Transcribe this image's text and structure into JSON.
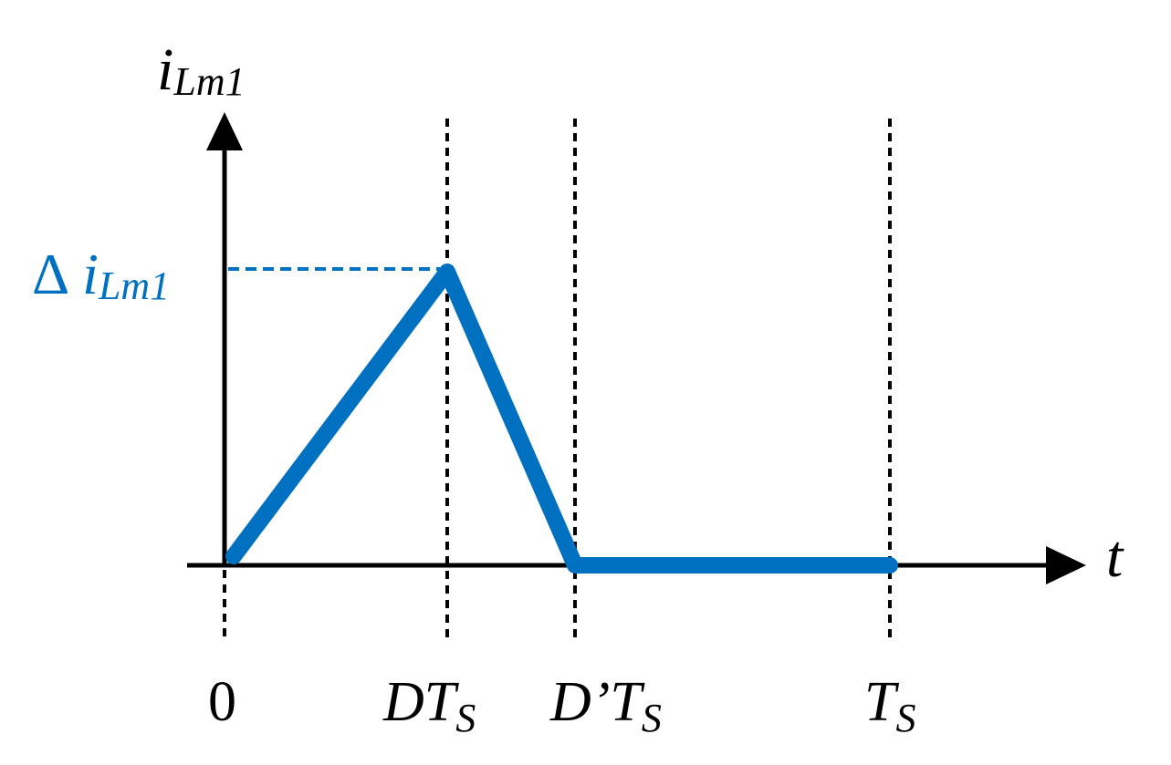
{
  "y_axis_label": {
    "main": "i",
    "sub": "Lm1"
  },
  "x_axis_label": "t",
  "peak_label": {
    "prefix": "Δ",
    "main": "i",
    "sub": "Lm1"
  },
  "x_labels": [
    {
      "main": "0"
    },
    {
      "main": "DT",
      "sub": "S"
    },
    {
      "main": "D’T",
      "sub": "S"
    },
    {
      "main": "T",
      "sub": "S"
    }
  ]
}
